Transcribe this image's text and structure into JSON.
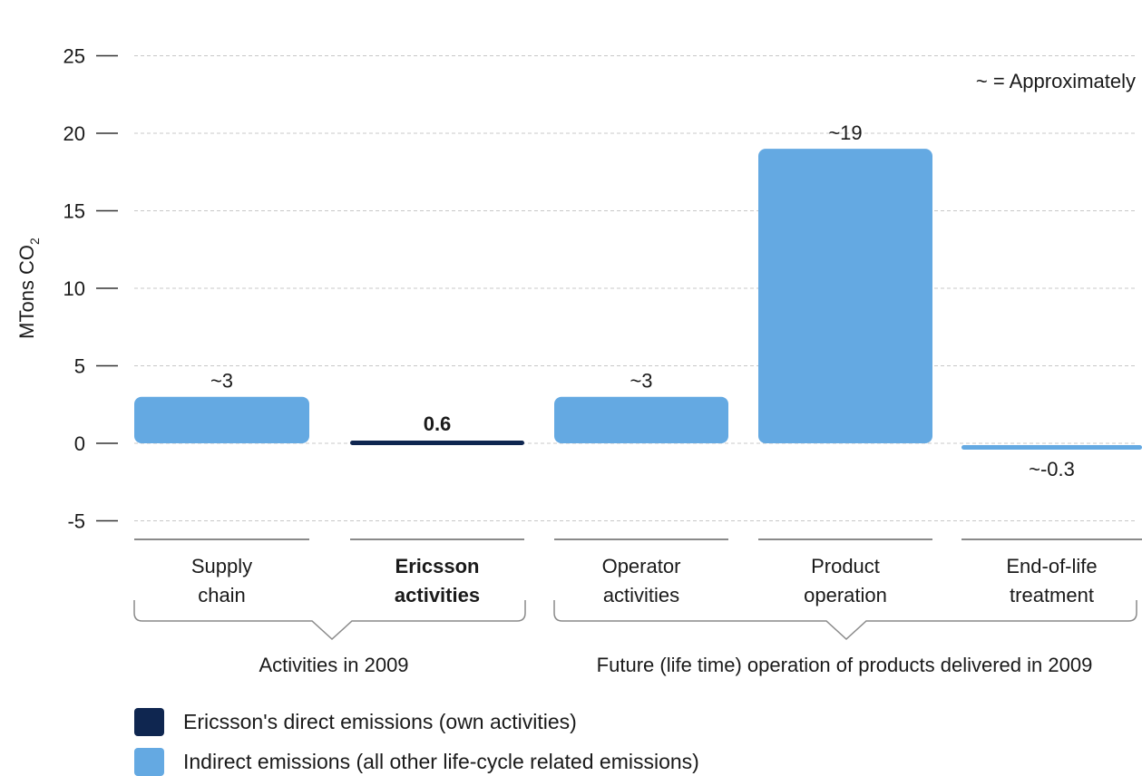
{
  "chart_data": {
    "type": "bar",
    "ylabel": "MTons CO",
    "ylabel_sub": "2",
    "ylim": [
      -6,
      25
    ],
    "yticks": [
      25,
      20,
      15,
      10,
      5,
      0,
      -5
    ],
    "grid": "dashed horizontal",
    "note": "~ = Approximately",
    "categories": [
      [
        "Supply",
        "chain"
      ],
      [
        "Ericsson",
        "activities"
      ],
      [
        "Operator",
        "activities"
      ],
      [
        "Product",
        "operation"
      ],
      [
        "End-of-life",
        "treatment"
      ]
    ],
    "values": [
      3,
      0.6,
      3,
      19,
      -0.3
    ],
    "value_labels": [
      "~3",
      "0.6",
      "~3",
      "~19",
      "~-0.3"
    ],
    "bar_colors": [
      "#64a9e2",
      "#0f2650",
      "#64a9e2",
      "#64a9e2",
      "#64a9e2"
    ],
    "groups": [
      "Activities in 2009",
      "Future (life time) operation of products delivered in 2009"
    ],
    "legend": [
      {
        "label": "Ericsson's direct emissions (own activities)",
        "color": "#0f2650"
      },
      {
        "label": "Indirect emissions (all other life-cycle related emissions)",
        "color": "#64a9e2"
      }
    ]
  }
}
